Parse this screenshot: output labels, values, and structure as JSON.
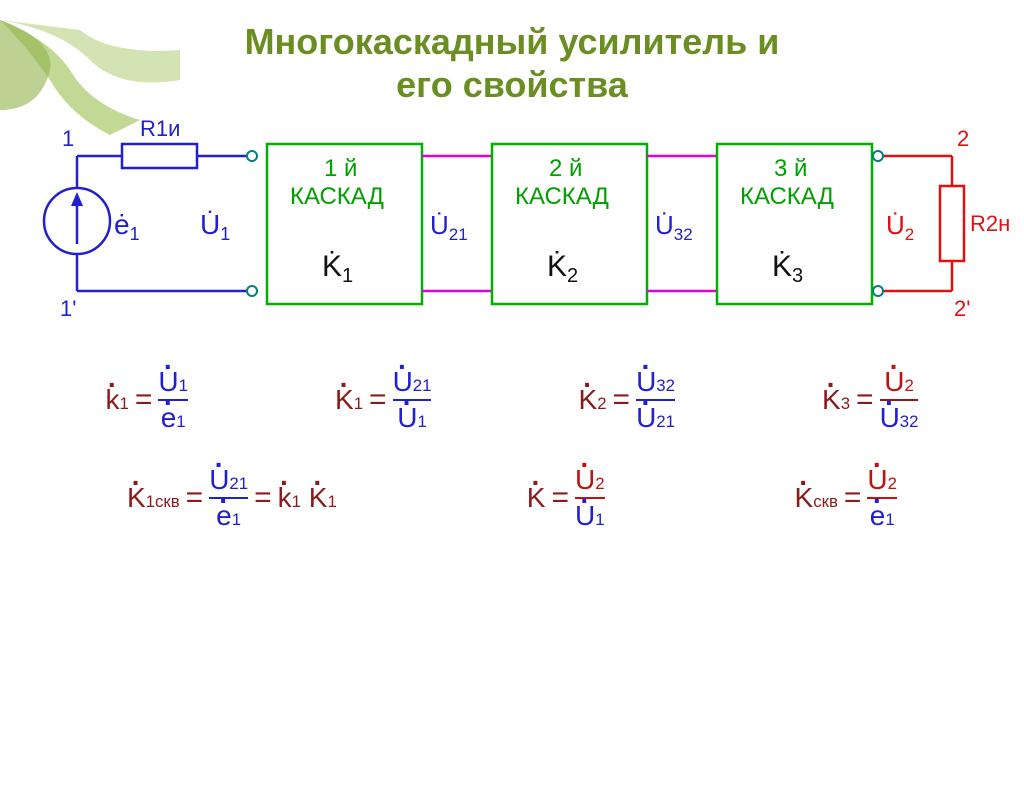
{
  "title_line1": "Многокаскадный усилитель и",
  "title_line2": "его свойства",
  "circuit": {
    "R1_label": "R1и",
    "R2_label": "R2н",
    "node_in_top": "1",
    "node_in_bot": "1'",
    "node_out_top": "2",
    "node_out_bot": "2'",
    "e1_label": "e",
    "e1_sub": "1",
    "U1_label": "U",
    "U1_sub": "1",
    "U21_label": "U",
    "U21_sub": "21",
    "U32_label": "U",
    "U32_sub": "32",
    "U2_label": "U",
    "U2_sub": "2",
    "stages": [
      {
        "line1": "1 й",
        "line2": "КАСКАД",
        "K": "K",
        "Ksub": "1"
      },
      {
        "line1": "2 й",
        "line2": "КАСКАД",
        "K": "K",
        "Ksub": "2"
      },
      {
        "line1": "3 й",
        "line2": "КАСКАД",
        "K": "K",
        "Ksub": "3"
      }
    ],
    "colors": {
      "input_wire": "#2020d0",
      "stage_box": "#00b000",
      "stage_text": "#00a000",
      "mid_wire": "#e000e0",
      "mid_label": "#2020d0",
      "output_wire": "#e01010",
      "output_label": "#e01010",
      "terminal_circle": "#008080"
    }
  },
  "formulas_row1": [
    {
      "lhs": {
        "sym": "k",
        "sub": "1",
        "low": false,
        "color": "#8b1a1a"
      },
      "num": {
        "sym": "U",
        "sub": "1",
        "color": "#2020d0"
      },
      "den": {
        "sym": "e",
        "sub": "1",
        "color": "#2020d0"
      },
      "frac_color": "#2020d0"
    },
    {
      "lhs": {
        "sym": "K",
        "sub": "1",
        "color": "#8b1a1a"
      },
      "num": {
        "sym": "U",
        "sub": "21",
        "color": "#2020d0"
      },
      "den": {
        "sym": "U",
        "sub": "1",
        "color": "#2020d0"
      },
      "frac_color": "#2020d0"
    },
    {
      "lhs": {
        "sym": "K",
        "sub": "2",
        "color": "#8b1a1a"
      },
      "num": {
        "sym": "U",
        "sub": "32",
        "color": "#2020d0"
      },
      "den": {
        "sym": "U",
        "sub": "21",
        "color": "#2020d0"
      },
      "frac_color": "#2020d0"
    },
    {
      "lhs": {
        "sym": "K",
        "sub": "3",
        "color": "#8b1a1a"
      },
      "num": {
        "sym": "U",
        "sub": "2",
        "color": "#c01010"
      },
      "den": {
        "sym": "U",
        "sub": "32",
        "color": "#2020d0"
      },
      "frac_color": "#8b1a1a"
    }
  ],
  "formulas_row2": {
    "f1": {
      "lhs": {
        "sym": "K",
        "sub": "1скв",
        "color": "#8b1a1a"
      },
      "num": {
        "sym": "U",
        "sub": "21",
        "color": "#2020d0"
      },
      "den": {
        "sym": "e",
        "sub": "1",
        "color": "#2020d0"
      },
      "tail_a": {
        "sym": "k",
        "sub": "1",
        "color": "#8b1a1a"
      },
      "tail_b": {
        "sym": "K",
        "sub": "1",
        "color": "#8b1a1a"
      },
      "frac_color": "#2020d0"
    },
    "f2": {
      "lhs": {
        "sym": "K",
        "sub": "",
        "color": "#8b1a1a"
      },
      "num": {
        "sym": "U",
        "sub": "2",
        "color": "#c01010"
      },
      "den": {
        "sym": "U",
        "sub": "1",
        "color": "#2020d0"
      },
      "frac_color": "#c01010"
    },
    "f3": {
      "lhs": {
        "sym": "K",
        "sub": "скв",
        "color": "#8b1a1a"
      },
      "num": {
        "sym": "U",
        "sub": "2",
        "color": "#c01010"
      },
      "den": {
        "sym": "e",
        "sub": "1",
        "color": "#2020d0"
      },
      "frac_color": "#c01010"
    }
  }
}
